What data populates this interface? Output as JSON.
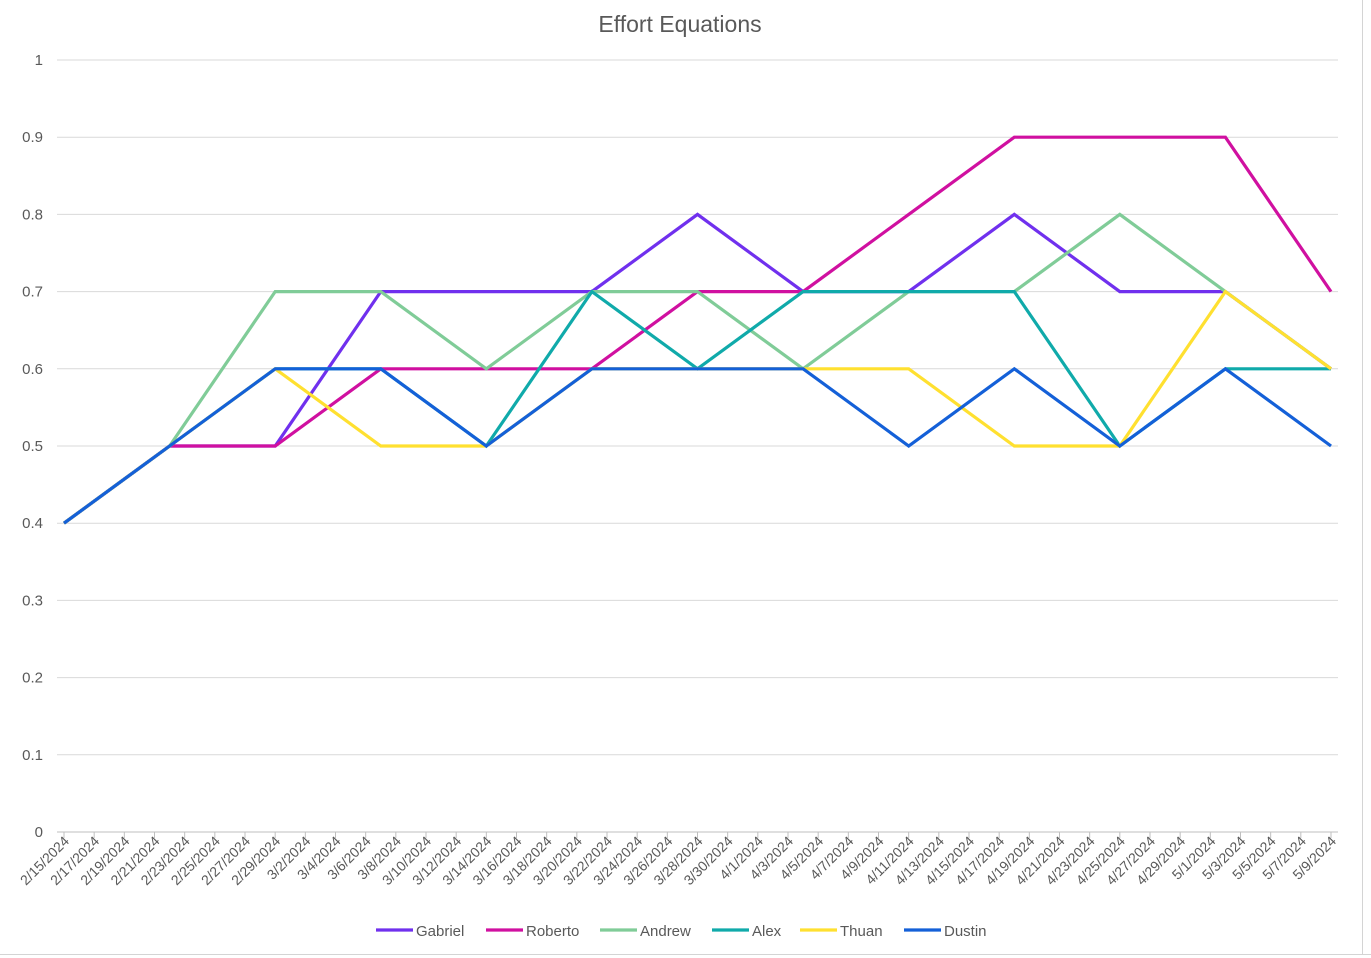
{
  "chart_data": {
    "type": "line",
    "title": "Effort Equations",
    "xlabel": "",
    "ylabel": "",
    "ylim": [
      0,
      1
    ],
    "yticks": [
      "0",
      "0.1",
      "0.2",
      "0.3",
      "0.4",
      "0.5",
      "0.6",
      "0.7",
      "0.8",
      "0.9",
      "1"
    ],
    "grid": true,
    "legend_position": "bottom",
    "x_labels": [
      "2/15/2024",
      "2/17/2024",
      "2/19/2024",
      "2/21/2024",
      "2/23/2024",
      "2/25/2024",
      "2/27/2024",
      "2/29/2024",
      "3/2/2024",
      "3/4/2024",
      "3/6/2024",
      "3/8/2024",
      "3/10/2024",
      "3/12/2024",
      "3/14/2024",
      "3/16/2024",
      "3/18/2024",
      "3/20/2024",
      "3/22/2024",
      "3/24/2024",
      "3/26/2024",
      "3/28/2024",
      "3/30/2024",
      "4/1/2024",
      "4/3/2024",
      "4/5/2024",
      "4/7/2024",
      "4/9/2024",
      "4/11/2024",
      "4/13/2024",
      "4/15/2024",
      "4/17/2024",
      "4/19/2024",
      "4/21/2024",
      "4/23/2024",
      "4/25/2024",
      "4/27/2024",
      "4/29/2024",
      "5/1/2024",
      "5/3/2024",
      "5/5/2024",
      "5/7/2024",
      "5/9/2024"
    ],
    "x_start": "2/15/2024",
    "x_end": "5/9/2024",
    "series": [
      {
        "name": "Gabriel",
        "color": "#7030ee",
        "points": [
          [
            "2/15/2024",
            0.4
          ],
          [
            "2/22/2024",
            0.5
          ],
          [
            "2/29/2024",
            0.5
          ],
          [
            "3/7/2024",
            0.7
          ],
          [
            "3/14/2024",
            0.7
          ],
          [
            "3/21/2024",
            0.7
          ],
          [
            "3/28/2024",
            0.8
          ],
          [
            "4/4/2024",
            0.7
          ],
          [
            "4/11/2024",
            0.7
          ],
          [
            "4/18/2024",
            0.8
          ],
          [
            "4/25/2024",
            0.7
          ],
          [
            "5/2/2024",
            0.7
          ],
          [
            "5/9/2024",
            0.6
          ]
        ]
      },
      {
        "name": "Roberto",
        "color": "#d010a0",
        "points": [
          [
            "2/15/2024",
            0.4
          ],
          [
            "2/22/2024",
            0.5
          ],
          [
            "2/29/2024",
            0.5
          ],
          [
            "3/7/2024",
            0.6
          ],
          [
            "3/14/2024",
            0.6
          ],
          [
            "3/21/2024",
            0.6
          ],
          [
            "3/28/2024",
            0.7
          ],
          [
            "4/4/2024",
            0.7
          ],
          [
            "4/11/2024",
            0.8
          ],
          [
            "4/18/2024",
            0.9
          ],
          [
            "4/25/2024",
            0.9
          ],
          [
            "5/2/2024",
            0.9
          ],
          [
            "5/9/2024",
            0.7
          ]
        ]
      },
      {
        "name": "Andrew",
        "color": "#80cc98",
        "points": [
          [
            "2/15/2024",
            0.4
          ],
          [
            "2/22/2024",
            0.5
          ],
          [
            "2/29/2024",
            0.7
          ],
          [
            "3/7/2024",
            0.7
          ],
          [
            "3/14/2024",
            0.6
          ],
          [
            "3/21/2024",
            0.7
          ],
          [
            "3/28/2024",
            0.7
          ],
          [
            "4/4/2024",
            0.6
          ],
          [
            "4/11/2024",
            0.7
          ],
          [
            "4/18/2024",
            0.7
          ],
          [
            "4/25/2024",
            0.8
          ],
          [
            "5/2/2024",
            0.7
          ],
          [
            "5/9/2024",
            0.6
          ]
        ]
      },
      {
        "name": "Alex",
        "color": "#10aaaa",
        "points": [
          [
            "2/15/2024",
            0.4
          ],
          [
            "2/22/2024",
            0.5
          ],
          [
            "2/29/2024",
            0.6
          ],
          [
            "3/7/2024",
            0.6
          ],
          [
            "3/14/2024",
            0.5
          ],
          [
            "3/21/2024",
            0.7
          ],
          [
            "3/28/2024",
            0.6
          ],
          [
            "4/4/2024",
            0.7
          ],
          [
            "4/11/2024",
            0.7
          ],
          [
            "4/18/2024",
            0.7
          ],
          [
            "4/25/2024",
            0.5
          ],
          [
            "5/2/2024",
            0.6
          ],
          [
            "5/9/2024",
            0.6
          ]
        ]
      },
      {
        "name": "Thuan",
        "color": "#ffe030",
        "points": [
          [
            "2/15/2024",
            0.4
          ],
          [
            "2/22/2024",
            0.5
          ],
          [
            "2/29/2024",
            0.6
          ],
          [
            "3/7/2024",
            0.5
          ],
          [
            "3/14/2024",
            0.5
          ],
          [
            "3/21/2024",
            0.6
          ],
          [
            "3/28/2024",
            0.6
          ],
          [
            "4/4/2024",
            0.6
          ],
          [
            "4/11/2024",
            0.6
          ],
          [
            "4/18/2024",
            0.5
          ],
          [
            "4/25/2024",
            0.5
          ],
          [
            "5/2/2024",
            0.7
          ],
          [
            "5/9/2024",
            0.6
          ]
        ]
      },
      {
        "name": "Dustin",
        "color": "#1460d8",
        "points": [
          [
            "2/15/2024",
            0.4
          ],
          [
            "2/22/2024",
            0.5
          ],
          [
            "2/29/2024",
            0.6
          ],
          [
            "3/7/2024",
            0.6
          ],
          [
            "3/14/2024",
            0.5
          ],
          [
            "3/21/2024",
            0.6
          ],
          [
            "3/28/2024",
            0.6
          ],
          [
            "4/4/2024",
            0.6
          ],
          [
            "4/11/2024",
            0.5
          ],
          [
            "4/18/2024",
            0.6
          ],
          [
            "4/25/2024",
            0.5
          ],
          [
            "5/2/2024",
            0.6
          ],
          [
            "5/9/2024",
            0.5
          ]
        ]
      }
    ]
  }
}
